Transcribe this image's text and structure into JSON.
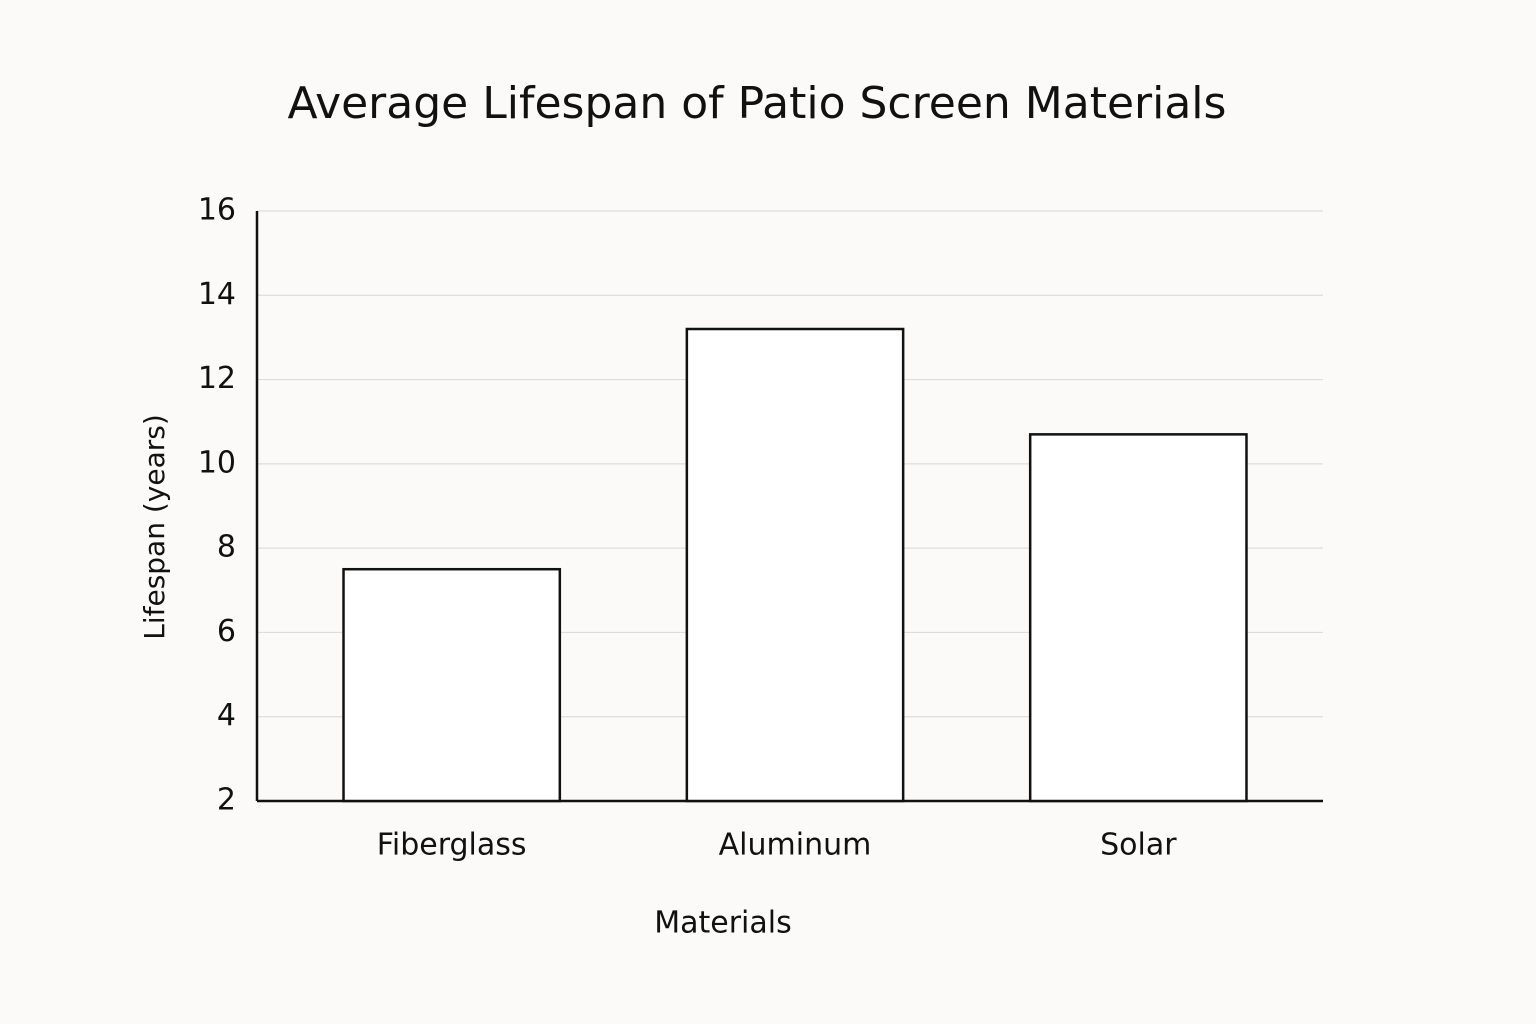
{
  "chart_data": {
    "type": "bar",
    "title": "Average Lifespan of Patio Screen Materials",
    "x_label": "Materials",
    "y_label": "Lifespan (years)",
    "categories": [
      "Fiberglass",
      "Aluminum",
      "Solar"
    ],
    "values": [
      7.5,
      13.2,
      10.7
    ],
    "color": "#ffffff",
    "ylim": [
      2,
      16
    ],
    "yticks": [
      2,
      4,
      6,
      8,
      10,
      12,
      14,
      16
    ],
    "grid": true
  }
}
